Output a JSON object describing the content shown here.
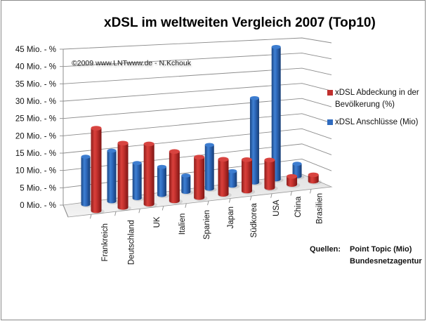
{
  "copyright": "©2009 www.LNTwww.de - N.Kchouk",
  "legend": [
    {
      "label_lines": [
        "xDSL Abdeckung in der",
        "Bevölkerung (%)"
      ],
      "color": "#c0302e"
    },
    {
      "label_lines": [
        "xDSL Anschlüsse (Mio)"
      ],
      "color": "#2f6bbf"
    }
  ],
  "sources": {
    "label": "Quellen:",
    "lines": [
      "Point Topic (Mio)",
      "Bundesnetzagentur"
    ]
  },
  "chart_data": {
    "type": "bar",
    "subtype": "3d-clustered-column",
    "title": "xDSL im weltweiten Vergleich 2007 (Top10)",
    "xlabel": "",
    "ylabel": "",
    "categories": [
      "Frankreich",
      "Deutschland",
      "UK",
      "Italien",
      "Spanien",
      "Japan",
      "Südkorea",
      "USA",
      "China",
      "Brasilien"
    ],
    "series": [
      {
        "name": "xDSL Abdeckung in der Bevölkerung (%)",
        "color": "#c0302e",
        "values": [
          23.5,
          18.5,
          17.5,
          14.5,
          12,
          10.5,
          9.5,
          8.5,
          2.5,
          2
        ]
      },
      {
        "name": "xDSL Anschlüsse (Mio)",
        "color": "#2f6bbf",
        "values": [
          14,
          15,
          10.5,
          8.5,
          5,
          13.5,
          4.5,
          26.5,
          42,
          4
        ]
      }
    ],
    "ylim": [
      0,
      45
    ],
    "y_tick_step": 5,
    "y_tick_labels": [
      "0 Mio. - %",
      "5 Mio. - %",
      "10 Mio. - %",
      "15 Mio. - %",
      "20 Mio. - %",
      "25 Mio. - %",
      "30 Mio. - %",
      "35 Mio. - %",
      "40 Mio. - %",
      "45 Mio. - %"
    ],
    "grid": true,
    "legend_position": "right"
  }
}
